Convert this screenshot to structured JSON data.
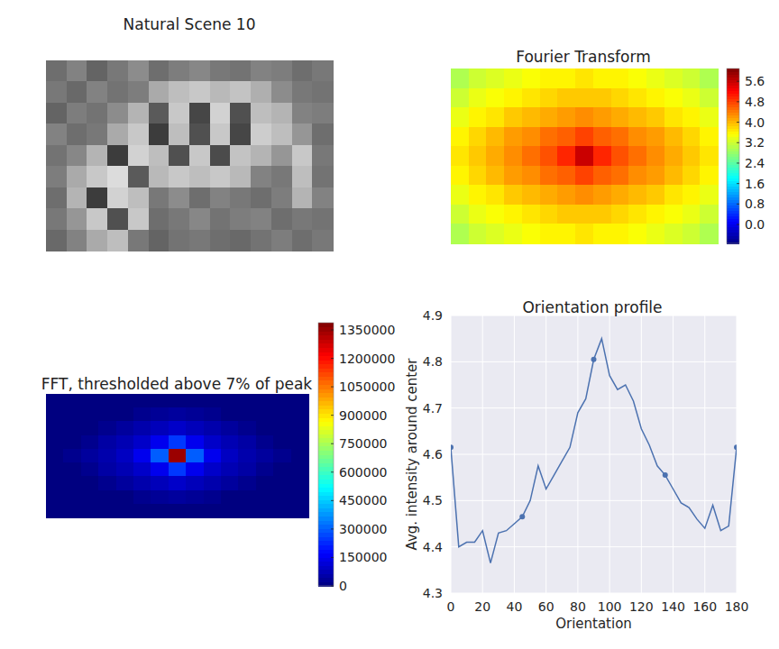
{
  "chart_data": [
    {
      "type": "image",
      "title": "Natural Scene 10",
      "tick_labels": false,
      "cells": [
        [
          110,
          130,
          100,
          120,
          140,
          110,
          125,
          135,
          120,
          115,
          130,
          125,
          110,
          120
        ],
        [
          120,
          105,
          130,
          115,
          125,
          170,
          190,
          200,
          185,
          195,
          175,
          140,
          120,
          115
        ],
        [
          100,
          125,
          115,
          140,
          180,
          90,
          200,
          70,
          210,
          80,
          190,
          180,
          130,
          125
        ],
        [
          130,
          110,
          120,
          170,
          200,
          60,
          190,
          80,
          200,
          70,
          205,
          190,
          150,
          110
        ],
        [
          115,
          135,
          180,
          60,
          210,
          190,
          80,
          200,
          75,
          195,
          180,
          150,
          200,
          120
        ],
        [
          125,
          170,
          200,
          220,
          90,
          185,
          200,
          190,
          200,
          185,
          130,
          120,
          190,
          115
        ],
        [
          110,
          180,
          60,
          210,
          190,
          120,
          140,
          110,
          130,
          120,
          110,
          125,
          180,
          130
        ],
        [
          120,
          150,
          200,
          80,
          200,
          110,
          120,
          135,
          115,
          125,
          130,
          110,
          120,
          115
        ],
        [
          105,
          130,
          170,
          190,
          120,
          100,
          115,
          120,
          110,
          105,
          115,
          125,
          110,
          120
        ]
      ],
      "cell_lim": [
        0,
        255
      ]
    },
    {
      "type": "heatmap",
      "title": "Fourier Transform",
      "tick_labels": false,
      "cells": [
        [
          3.0,
          3.2,
          3.3,
          3.4,
          3.5,
          3.6,
          3.6,
          3.7,
          3.6,
          3.6,
          3.5,
          3.4,
          3.3,
          3.2,
          3.0
        ],
        [
          3.2,
          3.4,
          3.5,
          3.6,
          3.7,
          3.8,
          3.9,
          3.9,
          3.9,
          3.8,
          3.7,
          3.6,
          3.5,
          3.4,
          3.2
        ],
        [
          3.4,
          3.6,
          3.7,
          3.9,
          4.0,
          4.1,
          4.2,
          4.3,
          4.2,
          4.1,
          4.0,
          3.9,
          3.7,
          3.6,
          3.4
        ],
        [
          3.6,
          3.8,
          4.0,
          4.2,
          4.3,
          4.5,
          4.6,
          4.8,
          4.6,
          4.5,
          4.3,
          4.2,
          4.0,
          3.8,
          3.6
        ],
        [
          3.7,
          3.9,
          4.1,
          4.3,
          4.5,
          4.7,
          5.0,
          5.6,
          5.0,
          4.7,
          4.5,
          4.3,
          4.1,
          3.9,
          3.7
        ],
        [
          3.6,
          3.8,
          4.0,
          4.2,
          4.3,
          4.5,
          4.6,
          4.8,
          4.6,
          4.5,
          4.3,
          4.2,
          4.0,
          3.8,
          3.6
        ],
        [
          3.4,
          3.6,
          3.7,
          3.9,
          4.0,
          4.1,
          4.2,
          4.3,
          4.2,
          4.1,
          4.0,
          3.9,
          3.7,
          3.6,
          3.4
        ],
        [
          3.2,
          3.4,
          3.5,
          3.6,
          3.7,
          3.8,
          3.9,
          3.9,
          3.9,
          3.8,
          3.7,
          3.6,
          3.5,
          3.4,
          3.2
        ],
        [
          3.0,
          3.2,
          3.3,
          3.4,
          3.5,
          3.6,
          3.6,
          3.7,
          3.6,
          3.6,
          3.5,
          3.4,
          3.3,
          3.2,
          3.0
        ]
      ],
      "colorbar_lim": [
        -0.74,
        6.1
      ],
      "colorbar_ticks": [
        {
          "value": 0,
          "label": "0.0"
        },
        {
          "value": 0.8,
          "label": "0.8"
        },
        {
          "value": 1.6,
          "label": "1.6"
        },
        {
          "value": 2.4,
          "label": "2.4"
        },
        {
          "value": 3.2,
          "label": "3.2"
        },
        {
          "value": 4.0,
          "label": "4.0"
        },
        {
          "value": 4.8,
          "label": "4.8"
        },
        {
          "value": 5.6,
          "label": "5.6"
        }
      ]
    },
    {
      "type": "heatmap",
      "title": "FFT, thresholded above 7% of peak",
      "tick_labels": false,
      "cells": [
        [
          0,
          0,
          0,
          0,
          0,
          0,
          0,
          0,
          0,
          0,
          0,
          0,
          0,
          0,
          0
        ],
        [
          0,
          0,
          0,
          0,
          0,
          20000,
          30000,
          40000,
          30000,
          20000,
          0,
          0,
          0,
          0,
          0
        ],
        [
          0,
          0,
          0,
          20000,
          40000,
          60000,
          80000,
          100000,
          80000,
          60000,
          40000,
          20000,
          0,
          0,
          0
        ],
        [
          0,
          0,
          20000,
          50000,
          70000,
          100000,
          150000,
          250000,
          150000,
          100000,
          70000,
          50000,
          20000,
          0,
          0
        ],
        [
          0,
          20000,
          40000,
          60000,
          90000,
          150000,
          300000,
          1350000,
          300000,
          150000,
          90000,
          60000,
          40000,
          20000,
          0
        ],
        [
          0,
          0,
          20000,
          50000,
          70000,
          100000,
          150000,
          250000,
          150000,
          100000,
          70000,
          50000,
          20000,
          0,
          0
        ],
        [
          0,
          0,
          0,
          20000,
          40000,
          60000,
          80000,
          100000,
          80000,
          60000,
          40000,
          20000,
          0,
          0,
          0
        ],
        [
          0,
          0,
          0,
          0,
          0,
          20000,
          30000,
          40000,
          30000,
          20000,
          0,
          0,
          0,
          0,
          0
        ],
        [
          0,
          0,
          0,
          0,
          0,
          0,
          0,
          0,
          0,
          0,
          0,
          0,
          0,
          0,
          0
        ]
      ],
      "colorbar_lim": [
        0,
        1388000
      ],
      "colorbar_ticks": [
        0,
        150000,
        300000,
        450000,
        600000,
        750000,
        900000,
        1050000,
        1200000,
        1350000
      ]
    },
    {
      "type": "line",
      "title": "Orientation profile",
      "x_label": "Orientation",
      "y_label": "Avg. intensity around center",
      "x": [
        0,
        5,
        10,
        15,
        20,
        25,
        30,
        35,
        40,
        45,
        50,
        55,
        60,
        65,
        70,
        75,
        80,
        85,
        90,
        95,
        100,
        105,
        110,
        115,
        120,
        125,
        130,
        135,
        140,
        145,
        150,
        155,
        160,
        165,
        170,
        175,
        180
      ],
      "series": [
        {
          "type": "line",
          "color": "#4c72b0",
          "values": [
            4.615,
            4.4,
            4.41,
            4.41,
            4.435,
            4.365,
            4.43,
            4.435,
            4.45,
            4.465,
            4.5,
            4.575,
            4.525,
            4.555,
            4.585,
            4.615,
            4.69,
            4.72,
            4.805,
            4.85,
            4.77,
            4.74,
            4.75,
            4.715,
            4.655,
            4.62,
            4.575,
            4.555,
            4.525,
            4.495,
            4.485,
            4.46,
            4.44,
            4.49,
            4.435,
            4.445,
            4.615
          ]
        },
        {
          "type": "scatter",
          "color": "#4c72b0",
          "marker": "circle",
          "x": [
            0,
            45,
            90,
            135,
            180
          ],
          "values": [
            4.615,
            4.465,
            4.805,
            4.555,
            4.615
          ]
        }
      ],
      "xlim": [
        0,
        180
      ],
      "ylim": [
        4.3,
        4.9
      ],
      "xticks": [
        0,
        20,
        40,
        60,
        80,
        100,
        120,
        140,
        160,
        180
      ],
      "yticks": [
        4.3,
        4.4,
        4.5,
        4.6,
        4.7,
        4.8,
        4.9
      ],
      "grid": true
    }
  ]
}
